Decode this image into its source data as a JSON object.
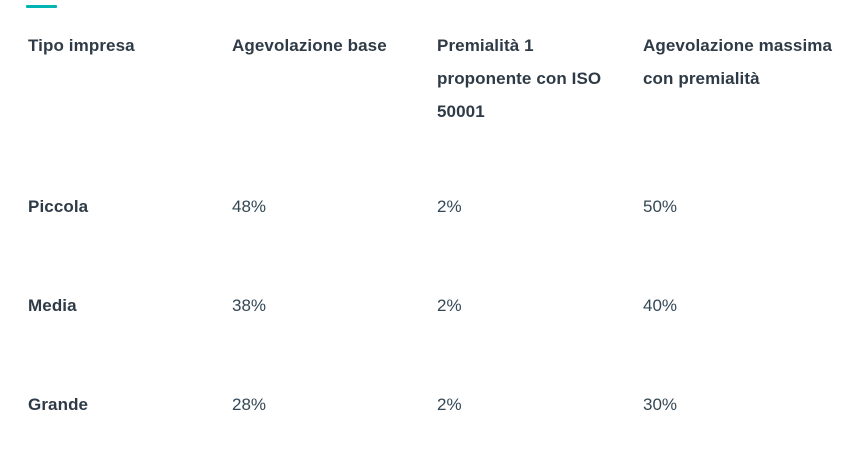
{
  "page": {
    "background": "#ffffff",
    "accent_color": "#00b5b1"
  },
  "chart_data": {
    "type": "table",
    "columns": [
      {
        "id": "tipo-impresa",
        "label": "Tipo impresa",
        "lines": [
          "Tipo impresa"
        ]
      },
      {
        "id": "agevolazione-base",
        "label": "Agevolazione base",
        "lines": [
          "Agevolazione base"
        ]
      },
      {
        "id": "premialita-iso-50001",
        "label": "Premialità 1 proponente con ISO 50001",
        "lines": [
          "Premialità 1",
          "proponente con ISO",
          "50001"
        ]
      },
      {
        "id": "agevolazione-massima",
        "label": "Agevolazione massima con premialità",
        "lines": [
          "Agevolazione massima",
          "con premialità"
        ]
      }
    ],
    "rows": [
      [
        "Piccola",
        "48%",
        "2%",
        "50%"
      ],
      [
        "Media",
        "38%",
        "2%",
        "40%"
      ],
      [
        "Grande",
        "28%",
        "2%",
        "30%"
      ]
    ]
  }
}
